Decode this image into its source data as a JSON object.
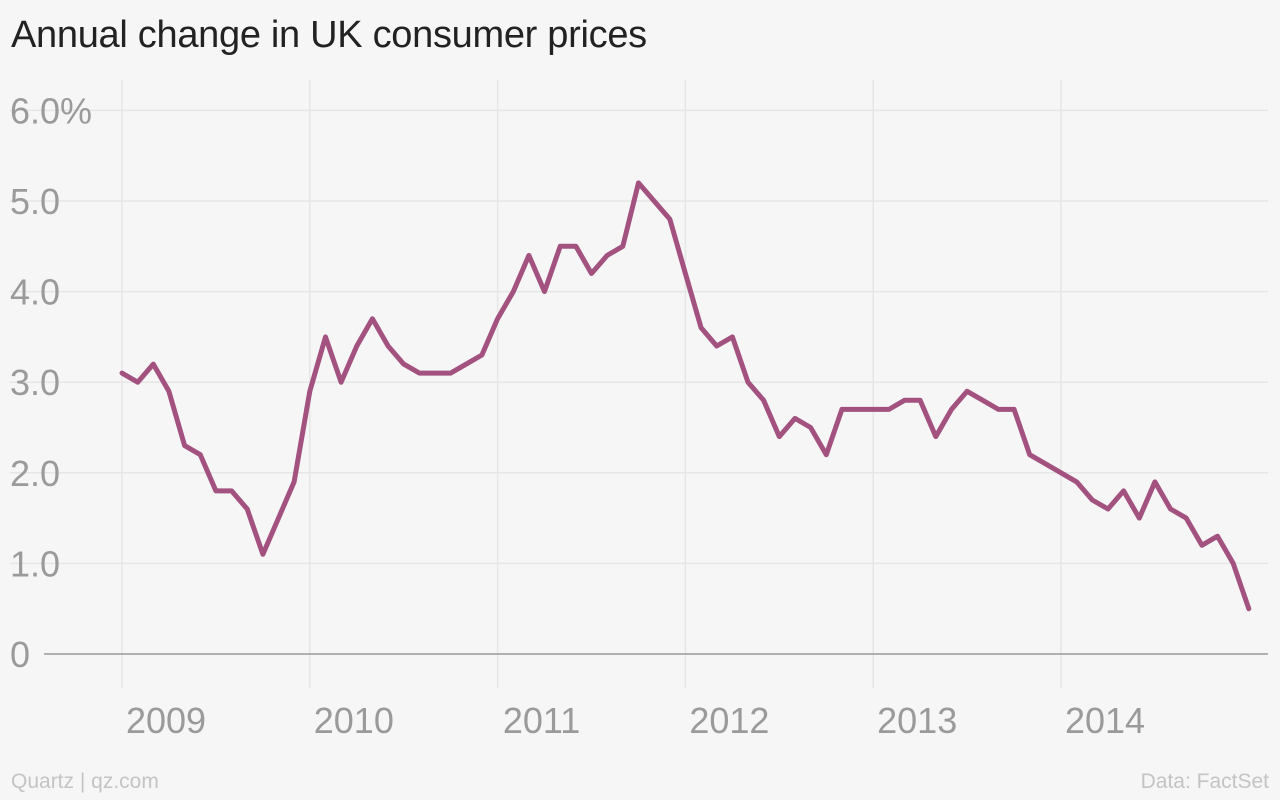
{
  "title": "Annual change in UK consumer prices",
  "footer": {
    "source_left": "Quartz | qz.com",
    "source_right": "Data: FactSet"
  },
  "colors": {
    "line": "#a3527f",
    "grid": "#e6e6e6",
    "baseline": "#9a9a9a",
    "tick_text": "#9a9a9a",
    "background": "#f6f6f6"
  },
  "chart_data": {
    "type": "line",
    "x_unit": "month",
    "start": "2009-01",
    "x_tick_labels": [
      "2009",
      "2010",
      "2011",
      "2012",
      "2013",
      "2014"
    ],
    "y_tick_labels": [
      "0",
      "1.0",
      "2.0",
      "3.0",
      "4.0",
      "5.0",
      "6.0%"
    ],
    "y_ticks": [
      0,
      1,
      2,
      3,
      4,
      5,
      6
    ],
    "ylim": [
      0,
      6.5
    ],
    "grid": true,
    "series": [
      {
        "values": [
          3.1,
          3.0,
          3.2,
          2.9,
          2.3,
          2.2,
          1.8,
          1.8,
          1.6,
          1.1,
          1.5,
          1.9,
          2.9,
          3.5,
          3.0,
          3.4,
          3.7,
          3.4,
          3.2,
          3.1,
          3.1,
          3.1,
          3.2,
          3.3,
          3.7,
          4.0,
          4.4,
          4.0,
          4.5,
          4.5,
          4.2,
          4.4,
          4.5,
          5.2,
          5.0,
          4.8,
          4.2,
          3.6,
          3.4,
          3.5,
          3.0,
          2.8,
          2.4,
          2.6,
          2.5,
          2.2,
          2.7,
          2.7,
          2.7,
          2.7,
          2.8,
          2.8,
          2.4,
          2.7,
          2.9,
          2.8,
          2.7,
          2.7,
          2.2,
          2.1,
          2.0,
          1.9,
          1.7,
          1.6,
          1.8,
          1.5,
          1.9,
          1.6,
          1.5,
          1.2,
          1.3,
          1.0,
          0.5
        ]
      }
    ]
  }
}
